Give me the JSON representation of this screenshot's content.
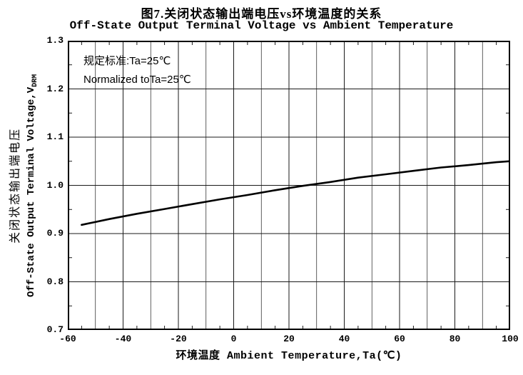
{
  "chart_data": {
    "type": "line",
    "title_cn": "图7.关闭状态输出端电压vs环境温度的关系",
    "title_en": "Off-State Output Terminal Voltage vs Ambient Temperature",
    "xlabel": "环境温度 Ambient Temperature,Ta(℃)",
    "ylabel_cn": "关闭状态输出端电压",
    "ylabel_en": "Off-State Output Terminal Voltage,V",
    "ylabel_sub": "DRM",
    "annotation_line1": "规定标准:Ta=25℃",
    "annotation_line2": "Normalized toTa=25℃",
    "xlim": [
      -60,
      100
    ],
    "ylim": [
      0.7,
      1.3
    ],
    "xticks": [
      -60,
      -40,
      -20,
      0,
      20,
      40,
      60,
      80,
      100
    ],
    "yticks": [
      0.7,
      0.8,
      0.9,
      1.0,
      1.1,
      1.2,
      1.3
    ],
    "x_grid_step": 10,
    "y_grid_step": 0.1,
    "grid": true,
    "legend": "none",
    "line_color": "#000000",
    "grid_color": "#1a1a1a",
    "series": [
      {
        "name": "Off-State Output Terminal Voltage (normalized)",
        "x": [
          -55,
          -45,
          -35,
          -25,
          -15,
          -5,
          5,
          15,
          25,
          35,
          45,
          55,
          65,
          75,
          85,
          95,
          100
        ],
        "y": [
          0.918,
          0.93,
          0.941,
          0.951,
          0.961,
          0.971,
          0.98,
          0.99,
          0.999,
          1.007,
          1.016,
          1.023,
          1.03,
          1.037,
          1.042,
          1.048,
          1.05
        ]
      }
    ]
  }
}
